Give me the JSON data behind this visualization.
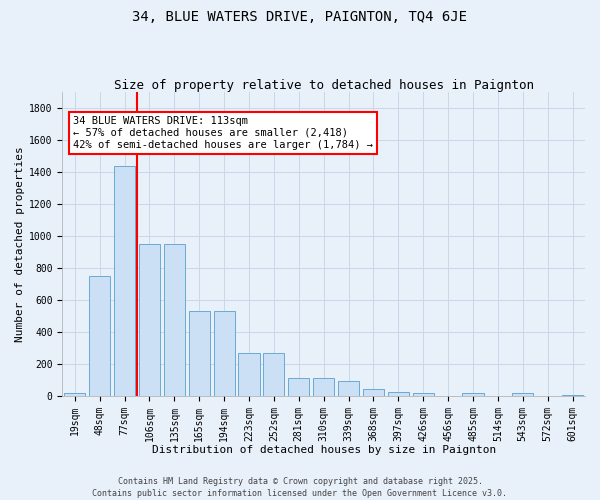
{
  "title": "34, BLUE WATERS DRIVE, PAIGNTON, TQ4 6JE",
  "subtitle": "Size of property relative to detached houses in Paignton",
  "xlabel": "Distribution of detached houses by size in Paignton",
  "ylabel": "Number of detached properties",
  "bar_color": "#cce0f5",
  "bar_edge_color": "#6aaad4",
  "bg_color": "#e8f0fa",
  "grid_color": "#d0dce8",
  "fig_bg_color": "#e8f0fa",
  "categories": [
    "19sqm",
    "48sqm",
    "77sqm",
    "106sqm",
    "135sqm",
    "165sqm",
    "194sqm",
    "223sqm",
    "252sqm",
    "281sqm",
    "310sqm",
    "339sqm",
    "368sqm",
    "397sqm",
    "426sqm",
    "456sqm",
    "485sqm",
    "514sqm",
    "543sqm",
    "572sqm",
    "601sqm"
  ],
  "values": [
    20,
    750,
    1440,
    950,
    950,
    530,
    530,
    265,
    265,
    110,
    110,
    90,
    40,
    25,
    15,
    0,
    15,
    0,
    15,
    0,
    5
  ],
  "red_line_index": 2.5,
  "annotation_text": "34 BLUE WATERS DRIVE: 113sqm\n← 57% of detached houses are smaller (2,418)\n42% of semi-detached houses are larger (1,784) →",
  "ylim": [
    0,
    1900
  ],
  "yticks": [
    0,
    200,
    400,
    600,
    800,
    1000,
    1200,
    1400,
    1600,
    1800
  ],
  "footer": "Contains HM Land Registry data © Crown copyright and database right 2025.\nContains public sector information licensed under the Open Government Licence v3.0.",
  "title_fontsize": 10,
  "subtitle_fontsize": 9,
  "axis_label_fontsize": 8,
  "tick_fontsize": 7,
  "footer_fontsize": 6,
  "annot_fontsize": 7.5
}
